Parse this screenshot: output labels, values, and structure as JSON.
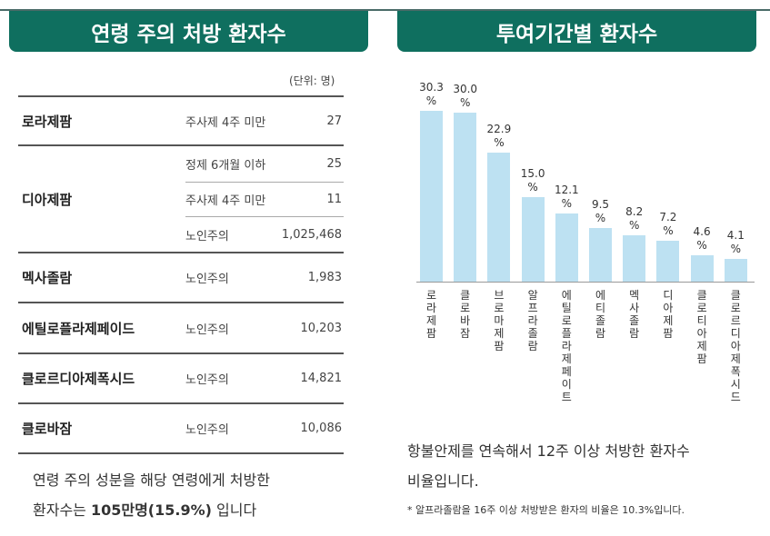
{
  "left": {
    "title": "연령 주의 처방 환자수",
    "unit": "(단위: 명)",
    "rows": [
      {
        "name": "로라제팜",
        "subs": [
          {
            "label": "주사제 4주 미만",
            "value": "27"
          }
        ]
      },
      {
        "name": "디아제팜",
        "subs": [
          {
            "label": "정제 6개월 이하",
            "value": "25"
          },
          {
            "label": "주사제 4주 미만",
            "value": "11"
          },
          {
            "label": "노인주의",
            "value": "1,025,468"
          }
        ]
      },
      {
        "name": "멕사졸람",
        "subs": [
          {
            "label": "노인주의",
            "value": "1,983"
          }
        ]
      },
      {
        "name": "에틸로플라제페이드",
        "subs": [
          {
            "label": "노인주의",
            "value": "10,203"
          }
        ]
      },
      {
        "name": "클로르디아제폭시드",
        "subs": [
          {
            "label": "노인주의",
            "value": "14,821"
          }
        ]
      },
      {
        "name": "클로바잠",
        "subs": [
          {
            "label": "노인주의",
            "value": "10,086"
          }
        ]
      }
    ],
    "note_pre": "연령 주의 성분을 해당 연령에게 처방한",
    "note_mid": "환자수는 ",
    "note_bold": "105만명(15.9%)",
    "note_post": " 입니다"
  },
  "right": {
    "title": "투여기간별 환자수",
    "desc1": "항불안제를 연속해서 12주 이상 처방한 환자수",
    "desc2": "비율입니다.",
    "footnote": "* 알프라졸람을 16주 이상 처방받은 환자의 비율은 10.3%입니다."
  },
  "chart_data": {
    "type": "bar",
    "categories": [
      "로라제팜",
      "클로바잠",
      "브로마제팜",
      "알프라졸람",
      "에틸로플라제페이트",
      "에티졸람",
      "멕사졸람",
      "디아제팜",
      "클로티아제팜",
      "클로르디아제폭시드"
    ],
    "values": [
      30.3,
      30.0,
      22.9,
      15.0,
      12.1,
      9.5,
      8.2,
      7.2,
      4.6,
      4.1
    ],
    "value_labels": [
      "30.3 %",
      "30.0 %",
      "22.9 %",
      "15.0 %",
      "12.1 %",
      "9.5 %",
      "8.2 %",
      "7.2 %",
      "4.6 %",
      "4.1 %"
    ],
    "bar_color": "#bde1f2"
  },
  "colors": {
    "header": "#0f6f5f"
  }
}
